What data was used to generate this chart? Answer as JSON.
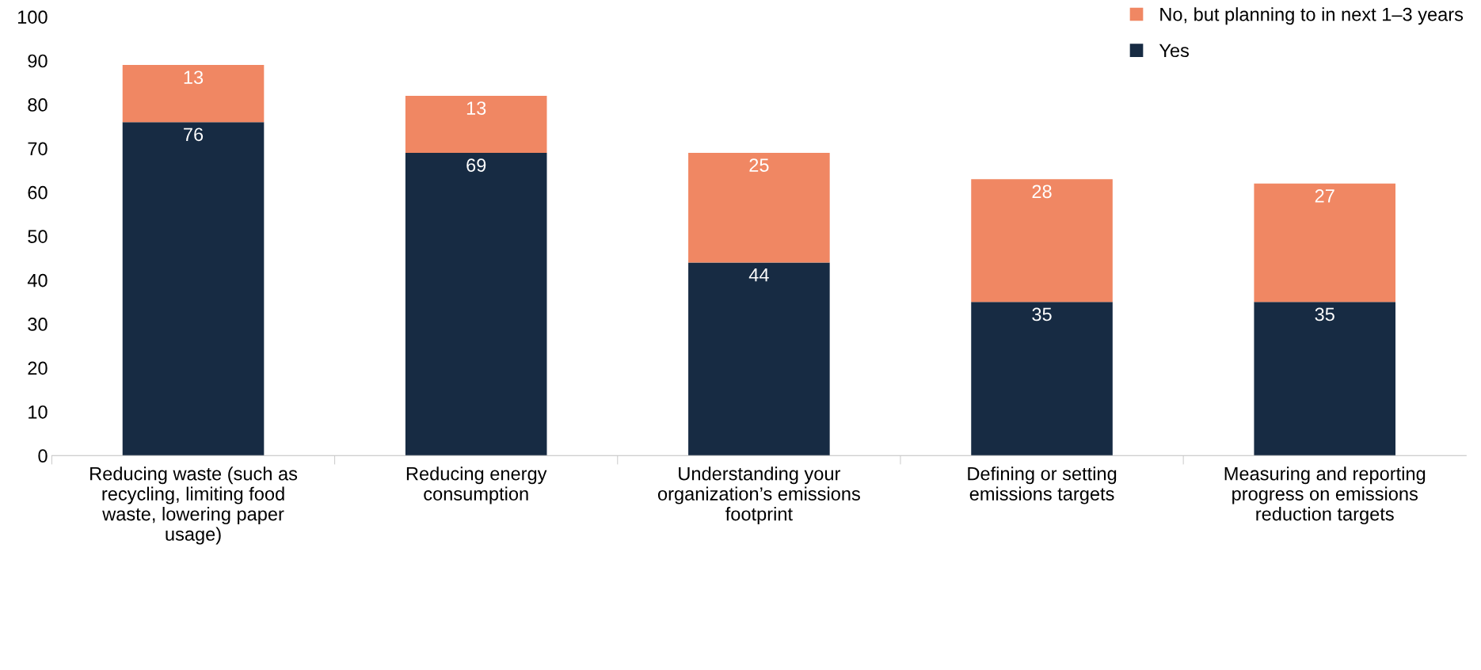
{
  "chart_data": {
    "type": "bar",
    "stacked": true,
    "categories": [
      "Reducing waste (such as\nrecycling, limiting food\nwaste, lowering paper\nusage)",
      "Reducing energy\nconsumption",
      "Understanding your\norganization’s emissions\nfootprint",
      "Defining or setting\nemissions targets",
      "Measuring and reporting\nprogress on emissions\nreduction targets"
    ],
    "series": [
      {
        "name": "Yes",
        "color": "#172b43",
        "values": [
          76,
          69,
          44,
          35,
          35
        ]
      },
      {
        "name": "No, but planning to in next 1–3 years",
        "color": "#f08763",
        "values": [
          13,
          13,
          25,
          28,
          27
        ]
      }
    ],
    "ylim": [
      0,
      100
    ],
    "yticks": [
      0,
      10,
      20,
      30,
      40,
      50,
      60,
      70,
      80,
      90,
      100
    ],
    "data_labels": true,
    "legend": "top right",
    "grid": false
  }
}
